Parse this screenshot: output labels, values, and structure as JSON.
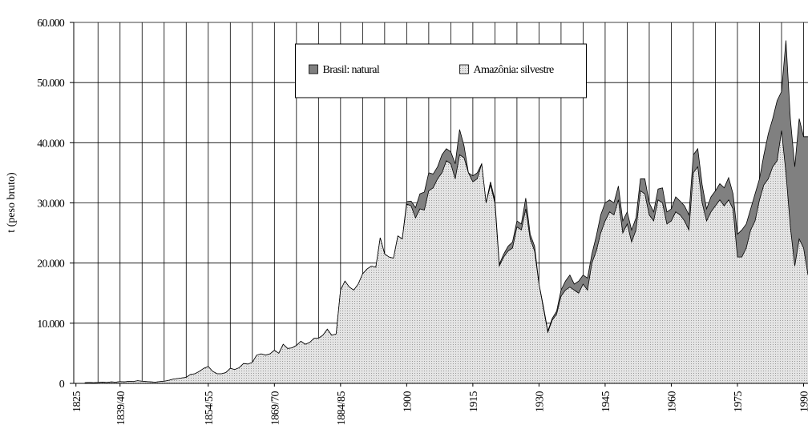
{
  "chart_data": {
    "type": "area",
    "y_label": "t (peso bruto)",
    "x": [
      1827,
      1828,
      1829,
      1830,
      1831,
      1832,
      1833,
      1834,
      1835,
      1836,
      1837,
      1838,
      1839,
      1840,
      1841,
      1842,
      1843,
      1844,
      1845,
      1846,
      1847,
      1848,
      1849,
      1850,
      1851,
      1852,
      1853,
      1854,
      1855,
      1856,
      1857,
      1858,
      1859,
      1860,
      1861,
      1862,
      1863,
      1864,
      1865,
      1866,
      1867,
      1868,
      1869,
      1870,
      1871,
      1872,
      1873,
      1874,
      1875,
      1876,
      1877,
      1878,
      1879,
      1880,
      1881,
      1882,
      1883,
      1884,
      1885,
      1886,
      1887,
      1888,
      1889,
      1890,
      1891,
      1892,
      1893,
      1894,
      1895,
      1896,
      1897,
      1898,
      1899,
      1900,
      1901,
      1902,
      1903,
      1904,
      1905,
      1906,
      1907,
      1908,
      1909,
      1910,
      1911,
      1912,
      1913,
      1914,
      1915,
      1916,
      1917,
      1918,
      1919,
      1920,
      1921,
      1922,
      1923,
      1924,
      1925,
      1926,
      1927,
      1928,
      1929,
      1930,
      1931,
      1932,
      1933,
      1934,
      1935,
      1936,
      1937,
      1938,
      1939,
      1940,
      1941,
      1942,
      1943,
      1944,
      1945,
      1946,
      1947,
      1948,
      1949,
      1950,
      1951,
      1952,
      1953,
      1954,
      1955,
      1956,
      1957,
      1958,
      1959,
      1960,
      1961,
      1962,
      1963,
      1964,
      1965,
      1966,
      1967,
      1968,
      1969,
      1970,
      1971,
      1972,
      1973,
      1974,
      1975,
      1976,
      1977,
      1978,
      1979,
      1980,
      1981,
      1982,
      1983,
      1984,
      1985,
      1986,
      1987,
      1988,
      1989,
      1990,
      1991
    ],
    "series": [
      {
        "name": "Brasil: natural",
        "color": "#808080",
        "values": [
          100,
          150,
          100,
          150,
          200,
          150,
          250,
          200,
          300,
          250,
          350,
          300,
          450,
          350,
          300,
          250,
          200,
          300,
          350,
          500,
          700,
          800,
          900,
          1000,
          1500,
          1600,
          2000,
          2500,
          2800,
          2000,
          1600,
          1600,
          1800,
          2500,
          2300,
          2600,
          3300,
          3200,
          3500,
          4700,
          4900,
          4700,
          4900,
          5500,
          5000,
          6500,
          5800,
          5900,
          6300,
          7000,
          6500,
          6800,
          7500,
          7500,
          8000,
          9000,
          8000,
          8200,
          15500,
          17000,
          16000,
          15500,
          16500,
          18200,
          19000,
          19500,
          19300,
          24200,
          21500,
          21000,
          20800,
          24500,
          24000,
          30200,
          30300,
          29200,
          31500,
          31800,
          35000,
          34800,
          36000,
          38000,
          39000,
          38500,
          36500,
          42200,
          39500,
          35000,
          34500,
          35000,
          36500,
          30000,
          33500,
          30500,
          19800,
          21500,
          22800,
          23500,
          27000,
          26500,
          30800,
          24800,
          22800,
          16500,
          12800,
          8700,
          10800,
          12000,
          15500,
          17000,
          18000,
          16500,
          17000,
          18000,
          17500,
          21500,
          24500,
          28000,
          30000,
          30500,
          30000,
          32800,
          27000,
          28500,
          25500,
          27500,
          34000,
          34000,
          30000,
          28500,
          32300,
          32500,
          28500,
          29000,
          31000,
          30300,
          29500,
          28000,
          38000,
          39000,
          33000,
          29000,
          31000,
          32000,
          33200,
          32500,
          34200,
          31500,
          24800,
          25500,
          26500,
          29000,
          31500,
          34000,
          38000,
          41500,
          44000,
          47000,
          48500,
          57000,
          44000,
          36000,
          44000,
          41000,
          41000
        ]
      },
      {
        "name": "Amazônia: silvestre",
        "color": "#e4e4e4",
        "values": [
          100,
          150,
          100,
          150,
          200,
          150,
          250,
          200,
          300,
          250,
          350,
          300,
          450,
          350,
          300,
          250,
          200,
          300,
          350,
          500,
          700,
          800,
          900,
          1000,
          1500,
          1600,
          2000,
          2500,
          2800,
          2000,
          1600,
          1600,
          1800,
          2500,
          2300,
          2600,
          3300,
          3200,
          3500,
          4700,
          4900,
          4700,
          4900,
          5500,
          5000,
          6500,
          5800,
          5900,
          6300,
          7000,
          6500,
          6800,
          7500,
          7500,
          8000,
          9000,
          8000,
          8200,
          15500,
          17000,
          16000,
          15500,
          16500,
          18200,
          19000,
          19500,
          19300,
          24200,
          21500,
          21000,
          20800,
          24500,
          24000,
          29800,
          29500,
          27500,
          29000,
          28800,
          32000,
          32500,
          34000,
          35000,
          37000,
          36500,
          34000,
          38000,
          37500,
          35000,
          33500,
          34000,
          36500,
          30000,
          33000,
          30000,
          19500,
          21000,
          22000,
          22500,
          26000,
          25500,
          29000,
          24000,
          22000,
          16500,
          12500,
          8500,
          10500,
          11500,
          14500,
          15500,
          16000,
          15500,
          15000,
          16500,
          15500,
          20000,
          22000,
          25000,
          27000,
          28500,
          28000,
          30500,
          25000,
          26500,
          23500,
          25500,
          32000,
          31500,
          28000,
          27000,
          30500,
          30000,
          26500,
          27000,
          28500,
          28000,
          27000,
          25500,
          35000,
          36000,
          30000,
          27000,
          28500,
          29500,
          30500,
          29500,
          30500,
          29000,
          21000,
          21000,
          22500,
          25500,
          27000,
          30500,
          33000,
          34000,
          36000,
          37000,
          42000,
          35000,
          26000,
          19500,
          24000,
          22500,
          18000
        ]
      }
    ],
    "xlim": [
      1824.5,
      1991
    ],
    "xticks": [
      1825,
      {
        "value": 1835,
        "label": "1839/40"
      },
      {
        "value": 1855,
        "label": "1854/55"
      },
      {
        "value": 1870,
        "label": "1869/70"
      },
      {
        "value": 1885,
        "label": "1884/85"
      },
      1900,
      1915,
      1930,
      1945,
      1960,
      1975,
      1990
    ],
    "xgrid": [
      1830,
      1835,
      1840,
      1845,
      1850,
      1855,
      1860,
      1865,
      1870,
      1875,
      1880,
      1885,
      1890,
      1895,
      1900,
      1905,
      1910,
      1915,
      1920,
      1925,
      1930,
      1935,
      1940,
      1945,
      1950,
      1955,
      1960,
      1965,
      1970,
      1975,
      1980,
      1985,
      1990
    ],
    "ylim": [
      0,
      60000
    ],
    "yticks": [
      0,
      {
        "value": 10000,
        "label": "10.000"
      },
      {
        "value": 20000,
        "label": "20.000"
      },
      {
        "value": 30000,
        "label": "30.000"
      },
      {
        "value": 40000,
        "label": "40.000"
      },
      {
        "value": 50000,
        "label": "50.000"
      },
      {
        "value": 60000,
        "label": "60.000"
      }
    ],
    "grid": true,
    "legend": "top-center"
  }
}
